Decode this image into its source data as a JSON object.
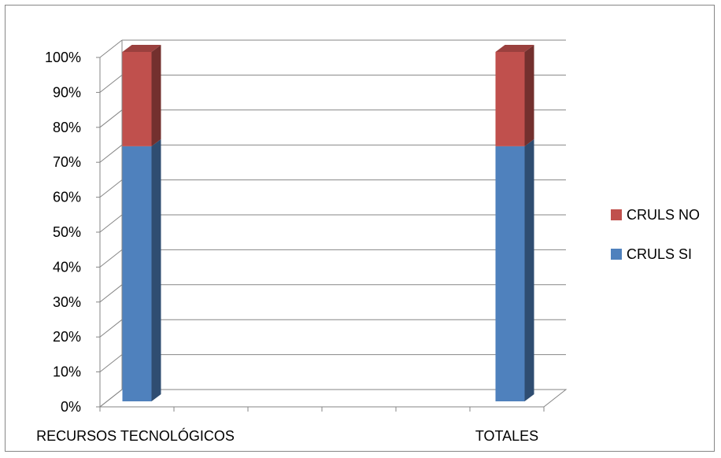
{
  "chart_data": {
    "type": "bar",
    "stacked": true,
    "percent_stacked": true,
    "three_d": true,
    "categories": [
      "RECURSOS TECNOLÓGICOS",
      "TOTALES"
    ],
    "series": [
      {
        "name": "CRULS SI",
        "values": [
          73,
          73
        ],
        "color": "#4f81bd"
      },
      {
        "name": "CRULS NO",
        "values": [
          27,
          27
        ],
        "color": "#c0504d"
      }
    ],
    "y_ticks": [
      "0%",
      "10%",
      "20%",
      "30%",
      "40%",
      "50%",
      "60%",
      "70%",
      "80%",
      "90%",
      "100%"
    ],
    "ylim": [
      0,
      100
    ],
    "grid": true,
    "legend_position": "right"
  }
}
